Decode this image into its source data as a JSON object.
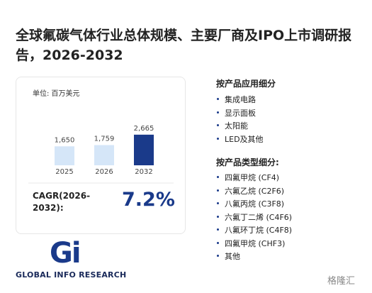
{
  "title": "全球氟碳气体行业总体规模、主要厂商及IPO上市调研报告，2026-2032",
  "chart_data": {
    "type": "bar",
    "unit": "单位: 百万美元",
    "categories": [
      "2025",
      "2026",
      "2032"
    ],
    "values": [
      1650,
      1759,
      2665
    ],
    "value_labels": [
      "1,650",
      "1,759",
      "2,665"
    ],
    "colors": [
      "#d5e6f8",
      "#d5e6f8",
      "#1a3a8a"
    ]
  },
  "cagr": {
    "label": "CAGR(2026-2032):",
    "value": "7.2%"
  },
  "application": {
    "heading": "按产品应用细分",
    "items": [
      "集成电路",
      "显示面板",
      "太阳能",
      "LED及其他"
    ]
  },
  "product_type": {
    "heading": "按产品类型细分:",
    "items": [
      "四氟甲烷 (CF4)",
      "六氟乙烷 (C2F6)",
      "八氟丙烷 (C3F8)",
      "六氟丁二烯 (C4F6)",
      "八氟环丁烷 (C4F8)",
      "四氟甲烷 (CHF3)",
      "其他"
    ]
  },
  "logo": {
    "mark": "Gi",
    "name": "GLOBAL INFO RESEARCH"
  },
  "watermark": "格隆汇"
}
